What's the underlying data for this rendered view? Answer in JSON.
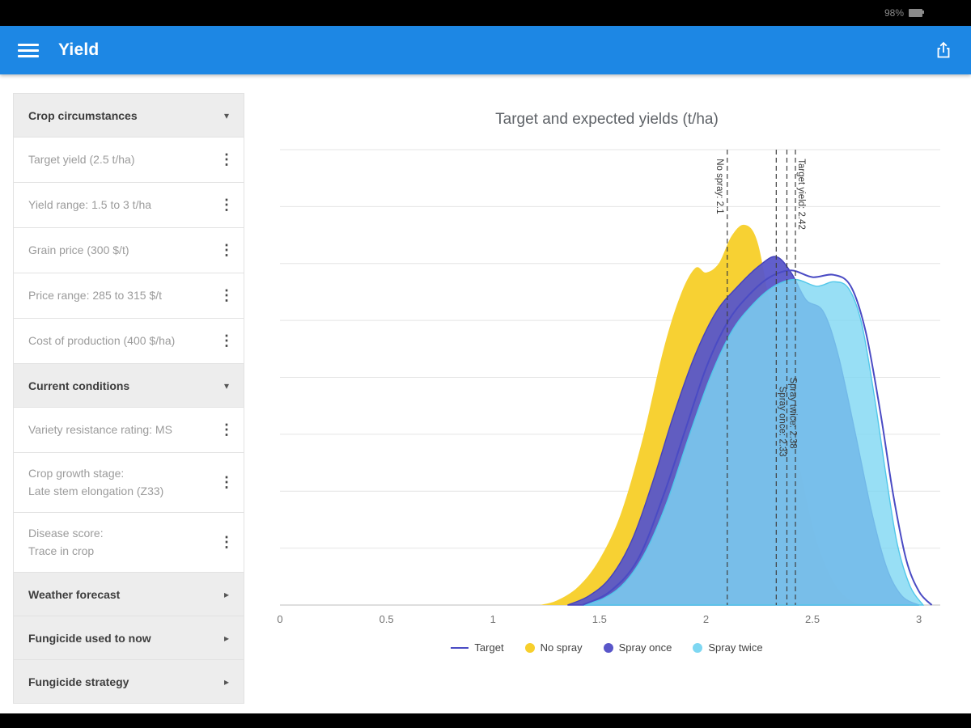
{
  "status_bar": {
    "battery": "98%"
  },
  "app_bar": {
    "title": "Yield"
  },
  "icons": {
    "expanded": "▾",
    "collapsed": "▸",
    "kebab": "⋮"
  },
  "sidebar": {
    "items": [
      {
        "label": "Crop circumstances",
        "type": "section",
        "state": "expanded"
      },
      {
        "label": "Target yield (2.5 t/ha)",
        "type": "setting"
      },
      {
        "label": "Yield range: 1.5 to 3 t/ha",
        "type": "setting"
      },
      {
        "label": "Grain price (300 $/t)",
        "type": "setting"
      },
      {
        "label": "Price range: 285 to 315 $/t",
        "type": "setting"
      },
      {
        "label": "Cost of production (400 $/ha)",
        "type": "setting"
      },
      {
        "label": "Current conditions",
        "type": "section",
        "state": "expanded"
      },
      {
        "label": "Variety resistance rating: MS",
        "type": "setting"
      },
      {
        "line1": "Crop growth stage:",
        "line2": "Late stem elongation (Z33)",
        "type": "setting"
      },
      {
        "line1": "Disease score:",
        "line2": "Trace in crop",
        "type": "setting"
      },
      {
        "label": "Weather forecast",
        "type": "section",
        "state": "collapsed"
      },
      {
        "label": "Fungicide used to now",
        "type": "section",
        "state": "collapsed"
      },
      {
        "label": "Fungicide strategy",
        "type": "section",
        "state": "collapsed"
      }
    ]
  },
  "chart_data": {
    "type": "area",
    "title": "Target and expected yields (t/ha)",
    "xlim": [
      0,
      3.1
    ],
    "x_ticks": [
      0,
      0.5,
      1,
      1.5,
      2,
      2.5,
      3
    ],
    "grid_lines": 8,
    "series": [
      {
        "name": "No spray",
        "color": "#F7CF2C",
        "opacity": 0.97,
        "points": [
          [
            1.22,
            0
          ],
          [
            1.3,
            0.01
          ],
          [
            1.4,
            0.04
          ],
          [
            1.5,
            0.1
          ],
          [
            1.6,
            0.2
          ],
          [
            1.7,
            0.36
          ],
          [
            1.8,
            0.56
          ],
          [
            1.88,
            0.68
          ],
          [
            1.95,
            0.74
          ],
          [
            2.0,
            0.73
          ],
          [
            2.06,
            0.75
          ],
          [
            2.12,
            0.81
          ],
          [
            2.18,
            0.835
          ],
          [
            2.24,
            0.8
          ],
          [
            2.3,
            0.66
          ],
          [
            2.38,
            0.46
          ],
          [
            2.45,
            0.28
          ],
          [
            2.52,
            0.14
          ],
          [
            2.6,
            0.05
          ],
          [
            2.68,
            0.01
          ],
          [
            2.76,
            0
          ]
        ]
      },
      {
        "name": "Spray once",
        "color": "#5956C9",
        "opacity": 0.95,
        "edge": "#4442bd",
        "points": [
          [
            1.35,
            0
          ],
          [
            1.45,
            0.02
          ],
          [
            1.55,
            0.06
          ],
          [
            1.65,
            0.14
          ],
          [
            1.75,
            0.27
          ],
          [
            1.85,
            0.42
          ],
          [
            1.95,
            0.55
          ],
          [
            2.05,
            0.645
          ],
          [
            2.15,
            0.7
          ],
          [
            2.25,
            0.745
          ],
          [
            2.33,
            0.765
          ],
          [
            2.4,
            0.73
          ],
          [
            2.47,
            0.67
          ],
          [
            2.55,
            0.645
          ],
          [
            2.62,
            0.55
          ],
          [
            2.7,
            0.38
          ],
          [
            2.78,
            0.2
          ],
          [
            2.85,
            0.08
          ],
          [
            2.92,
            0.02
          ],
          [
            3.0,
            0
          ]
        ]
      },
      {
        "name": "Spray twice",
        "color": "#7ED7F2",
        "opacity": 0.8,
        "edge": "#52c8ea",
        "points": [
          [
            1.42,
            0
          ],
          [
            1.52,
            0.015
          ],
          [
            1.62,
            0.05
          ],
          [
            1.72,
            0.12
          ],
          [
            1.82,
            0.23
          ],
          [
            1.92,
            0.37
          ],
          [
            2.02,
            0.5
          ],
          [
            2.12,
            0.6
          ],
          [
            2.22,
            0.66
          ],
          [
            2.32,
            0.7
          ],
          [
            2.42,
            0.715
          ],
          [
            2.52,
            0.7
          ],
          [
            2.6,
            0.71
          ],
          [
            2.67,
            0.695
          ],
          [
            2.73,
            0.62
          ],
          [
            2.79,
            0.46
          ],
          [
            2.85,
            0.27
          ],
          [
            2.9,
            0.13
          ],
          [
            2.96,
            0.04
          ],
          [
            3.02,
            0
          ]
        ]
      }
    ],
    "target_line": {
      "name": "Target",
      "color": "#4A4BC4",
      "points": [
        [
          1.42,
          0
        ],
        [
          1.55,
          0.03
        ],
        [
          1.68,
          0.1
        ],
        [
          1.8,
          0.24
        ],
        [
          1.9,
          0.38
        ],
        [
          2.0,
          0.52
        ],
        [
          2.1,
          0.62
        ],
        [
          2.2,
          0.68
        ],
        [
          2.3,
          0.72
        ],
        [
          2.4,
          0.735
        ],
        [
          2.5,
          0.72
        ],
        [
          2.6,
          0.725
        ],
        [
          2.68,
          0.7
        ],
        [
          2.75,
          0.6
        ],
        [
          2.82,
          0.42
        ],
        [
          2.88,
          0.24
        ],
        [
          2.94,
          0.1
        ],
        [
          3.0,
          0.03
        ],
        [
          3.06,
          0
        ]
      ]
    },
    "markers": [
      {
        "x": 2.1,
        "label": "No spray: 2.1",
        "side": "left",
        "label_y": 0.02
      },
      {
        "x": 2.33,
        "label": "Spray once: 2.33",
        "side": "right",
        "label_y": 0.52
      },
      {
        "x": 2.38,
        "label": "Spray twice: 2.38",
        "side": "right",
        "label_y": 0.5
      },
      {
        "x": 2.42,
        "label": "Target yield: 2.42",
        "side": "right",
        "label_y": 0.02
      }
    ],
    "legend": [
      {
        "label": "Target",
        "swatch": "line",
        "color": "#4A4BC4"
      },
      {
        "label": "No spray",
        "swatch": "dot",
        "color": "#F7CF2C"
      },
      {
        "label": "Spray once",
        "swatch": "dot",
        "color": "#5956C9"
      },
      {
        "label": "Spray twice",
        "swatch": "dot",
        "color": "#7ED7F2"
      }
    ]
  }
}
